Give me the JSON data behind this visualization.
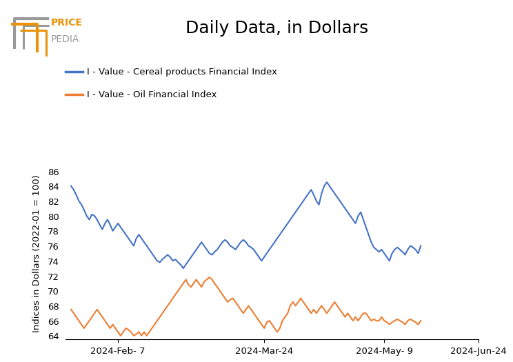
{
  "title": "Daily Data, in Dollars",
  "ylabel": "Indices in Dollars (2022-01 = 100)",
  "line1_label": "I - Value - Cereal products Financial Index",
  "line2_label": "I - Value - Oil Financial Index",
  "line1_color": "#4472C4",
  "line2_color": "#ED7D31",
  "ylim": [
    63.5,
    86.5
  ],
  "yticks": [
    64,
    66,
    68,
    70,
    72,
    74,
    76,
    78,
    80,
    82,
    84,
    86
  ],
  "background_color": "#FFFFFF",
  "title_fontsize": 18,
  "legend_fontsize": 9.5,
  "axis_fontsize": 9.5,
  "line_width": 1.5,
  "cereal_data": [
    84.0,
    83.5,
    82.8,
    82.0,
    81.5,
    80.8,
    80.0,
    79.5,
    80.2,
    80.0,
    79.5,
    78.8,
    78.2,
    79.0,
    79.5,
    78.8,
    78.0,
    78.5,
    79.0,
    78.5,
    78.0,
    77.5,
    77.0,
    76.5,
    76.0,
    77.0,
    77.5,
    77.0,
    76.5,
    76.0,
    75.5,
    75.0,
    74.5,
    74.0,
    73.8,
    74.2,
    74.5,
    74.8,
    74.5,
    74.0,
    74.2,
    73.8,
    73.5,
    73.0,
    73.5,
    74.0,
    74.5,
    75.0,
    75.5,
    76.0,
    76.5,
    76.0,
    75.5,
    75.0,
    74.8,
    75.2,
    75.5,
    76.0,
    76.5,
    76.8,
    76.5,
    76.0,
    75.8,
    75.5,
    76.0,
    76.5,
    76.8,
    76.5,
    76.0,
    75.8,
    75.5,
    75.0,
    74.5,
    74.0,
    74.5,
    75.0,
    75.5,
    76.0,
    76.5,
    77.0,
    77.5,
    78.0,
    78.5,
    79.0,
    79.5,
    80.0,
    80.5,
    81.0,
    81.5,
    82.0,
    82.5,
    83.0,
    83.5,
    82.8,
    82.0,
    81.5,
    83.0,
    84.0,
    84.5,
    84.0,
    83.5,
    83.0,
    82.5,
    82.0,
    81.5,
    81.0,
    80.5,
    80.0,
    79.5,
    79.0,
    80.0,
    80.5,
    79.5,
    78.5,
    77.5,
    76.5,
    75.8,
    75.5,
    75.2,
    75.5,
    75.0,
    74.5,
    74.0,
    75.0,
    75.5,
    75.8,
    75.5,
    75.2,
    74.8,
    75.5,
    76.0,
    75.8,
    75.5,
    75.0,
    76.0
  ],
  "oil_data": [
    67.5,
    67.0,
    66.5,
    66.0,
    65.5,
    65.0,
    65.5,
    66.0,
    66.5,
    67.0,
    67.5,
    67.0,
    66.5,
    66.0,
    65.5,
    65.0,
    65.5,
    65.0,
    64.5,
    64.0,
    64.5,
    65.0,
    64.8,
    64.5,
    64.0,
    64.2,
    64.5,
    64.0,
    64.5,
    64.0,
    64.5,
    65.0,
    65.5,
    66.0,
    66.5,
    67.0,
    67.5,
    68.0,
    68.5,
    69.0,
    69.5,
    70.0,
    70.5,
    71.0,
    71.5,
    70.8,
    70.5,
    71.0,
    71.5,
    71.0,
    70.5,
    71.2,
    71.5,
    71.8,
    71.5,
    71.0,
    70.5,
    70.0,
    69.5,
    69.0,
    68.5,
    68.8,
    69.0,
    68.5,
    68.0,
    67.5,
    67.0,
    67.5,
    68.0,
    67.5,
    67.0,
    66.5,
    66.0,
    65.5,
    65.0,
    65.8,
    66.0,
    65.5,
    65.0,
    64.5,
    65.0,
    66.0,
    66.5,
    67.0,
    68.0,
    68.5,
    68.0,
    68.5,
    69.0,
    68.5,
    68.0,
    67.5,
    67.0,
    67.5,
    67.0,
    67.5,
    68.0,
    67.5,
    67.0,
    67.5,
    68.0,
    68.5,
    68.0,
    67.5,
    67.0,
    66.5,
    67.0,
    66.5,
    66.0,
    66.5,
    66.0,
    66.5,
    67.0,
    67.0,
    66.5,
    66.0,
    66.2,
    66.0,
    66.0,
    66.5,
    66.0,
    65.8,
    65.5,
    65.8,
    66.0,
    66.2,
    66.0,
    65.8,
    65.5,
    66.0,
    66.2,
    66.0,
    65.8,
    65.5,
    66.0
  ],
  "xtick_labels": [
    "2024-Feb- 7",
    "2024-Mar-24",
    "2024-May- 9",
    "2024-Jun-24"
  ],
  "xtick_positions": [
    18,
    74,
    120,
    156
  ],
  "logo_gray": "#999999",
  "logo_orange": "#E8930A"
}
